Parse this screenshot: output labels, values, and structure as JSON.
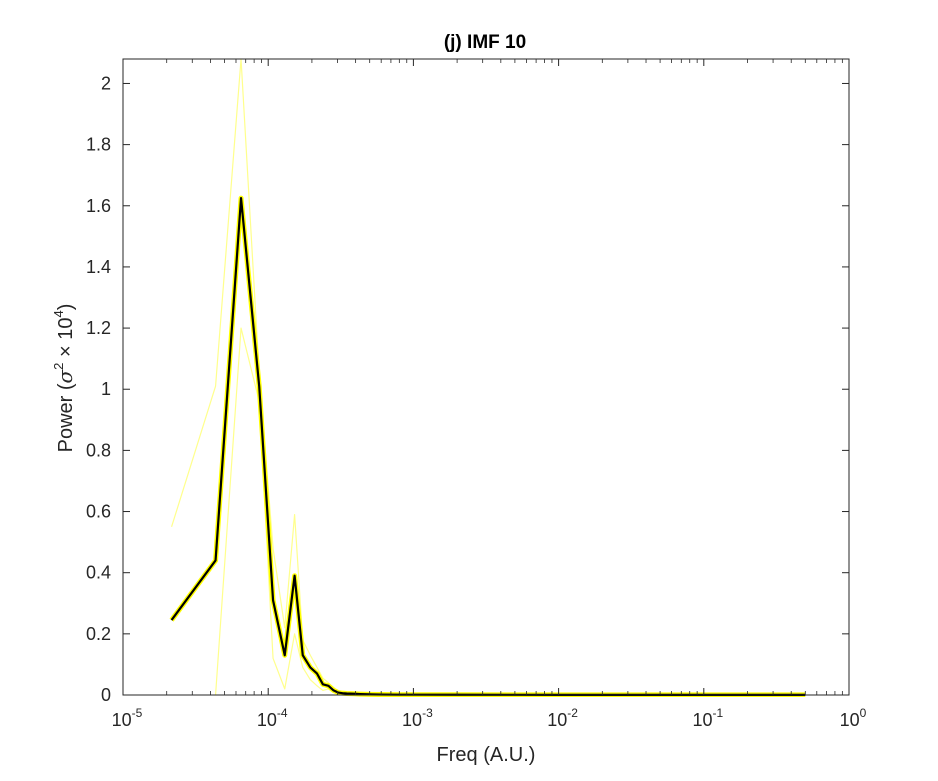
{
  "chart_data": {
    "type": "line",
    "title": "(j) IMF 10",
    "xlabel": "Freq (A.U.)",
    "ylabel": {
      "prefix": "Power (",
      "symbol": "σ",
      "exp1": "2",
      "times": " × 10",
      "exp2": "4",
      "suffix": ")"
    },
    "x_scale": "log",
    "xlim": [
      1e-05,
      1
    ],
    "ylim": [
      0,
      2.08
    ],
    "grid": false,
    "x_ticks": [
      {
        "value": 1e-05,
        "base": "10",
        "exp": "-5"
      },
      {
        "value": 0.0001,
        "base": "10",
        "exp": "-4"
      },
      {
        "value": 0.001,
        "base": "10",
        "exp": "-3"
      },
      {
        "value": 0.01,
        "base": "10",
        "exp": "-2"
      },
      {
        "value": 0.1,
        "base": "10",
        "exp": "-1"
      },
      {
        "value": 1,
        "base": "10",
        "exp": "0"
      }
    ],
    "y_ticks": [
      {
        "value": 0,
        "label": "0"
      },
      {
        "value": 0.2,
        "label": "0.2"
      },
      {
        "value": 0.4,
        "label": "0.4"
      },
      {
        "value": 0.6,
        "label": "0.6"
      },
      {
        "value": 0.8,
        "label": "0.8"
      },
      {
        "value": 1,
        "label": "1"
      },
      {
        "value": 1.2,
        "label": "1.2"
      },
      {
        "value": 1.4,
        "label": "1.4"
      },
      {
        "value": 1.6,
        "label": "1.6"
      },
      {
        "value": 1.8,
        "label": "1.8"
      },
      {
        "value": 2,
        "label": "2"
      }
    ],
    "colors": {
      "mean": "#000000",
      "mean_halo": "#ffff00",
      "bounds": "#ffff66",
      "axes": "#262626"
    },
    "series": [
      {
        "role": "mean",
        "x": [
          2.16e-05,
          4.34e-05,
          6.5e-05,
          8.67e-05,
          0.000108,
          0.00013,
          0.000152,
          0.000173,
          0.000195,
          0.000217,
          0.000238,
          0.00026,
          0.000282,
          0.000303,
          0.000325,
          0.000347,
          0.00039,
          0.00043,
          0.0005,
          0.0006,
          0.0008,
          0.001,
          0.002,
          0.005,
          0.01,
          0.05,
          0.1,
          0.5
        ],
        "y": [
          0.245,
          0.44,
          1.625,
          1.01,
          0.31,
          0.13,
          0.39,
          0.13,
          0.09,
          0.07,
          0.035,
          0.03,
          0.015,
          0.008,
          0.006,
          0.005,
          0.004,
          0.003,
          0.002,
          0.0015,
          0.001,
          0.001,
          0.0008,
          0.0006,
          0.0005,
          0.0004,
          0.0004,
          0.0003
        ]
      },
      {
        "role": "upper-bound",
        "x": [
          2.16e-05,
          4.34e-05,
          6.5e-05,
          8.67e-05,
          0.000108,
          0.00013,
          0.000152,
          0.000173,
          0.000195,
          0.000217,
          0.000238,
          0.00026,
          0.000282,
          0.000303,
          0.000325,
          0.000347,
          0.00039,
          0.00043,
          0.0005,
          0.0006,
          0.0008,
          0.001,
          0.002,
          0.005,
          0.01,
          0.05,
          0.1,
          0.5
        ],
        "y": [
          0.55,
          1.01,
          2.08,
          1.05,
          0.48,
          0.22,
          0.59,
          0.18,
          0.13,
          0.09,
          0.055,
          0.04,
          0.025,
          0.014,
          0.01,
          0.008,
          0.006,
          0.005,
          0.004,
          0.003,
          0.002,
          0.002,
          0.0015,
          0.001,
          0.0009,
          0.0008,
          0.0007,
          0.0006
        ]
      },
      {
        "role": "lower-bound",
        "x": [
          4.34e-05,
          6.5e-05,
          8.67e-05,
          0.000108,
          0.00013,
          0.000152,
          0.000173,
          0.000195,
          0.000217,
          0.000238,
          0.00026,
          0.000282,
          0.000303,
          0.000325,
          0.000347,
          0.00039,
          0.00043,
          0.0005,
          0.0006,
          0.0008,
          0.001,
          0.002,
          0.005,
          0.01,
          0.05,
          0.1,
          0.5
        ],
        "y": [
          0.0,
          1.2,
          0.96,
          0.12,
          0.02,
          0.2,
          0.09,
          0.05,
          0.03,
          0.015,
          0.02,
          0.008,
          0.003,
          0.002,
          0.002,
          0.002,
          0.001,
          0.0008,
          0.0006,
          0.0005,
          0.0004,
          0.0003,
          0.0002,
          0.0002,
          0.0001,
          0.0001,
          0.0001
        ]
      }
    ]
  }
}
